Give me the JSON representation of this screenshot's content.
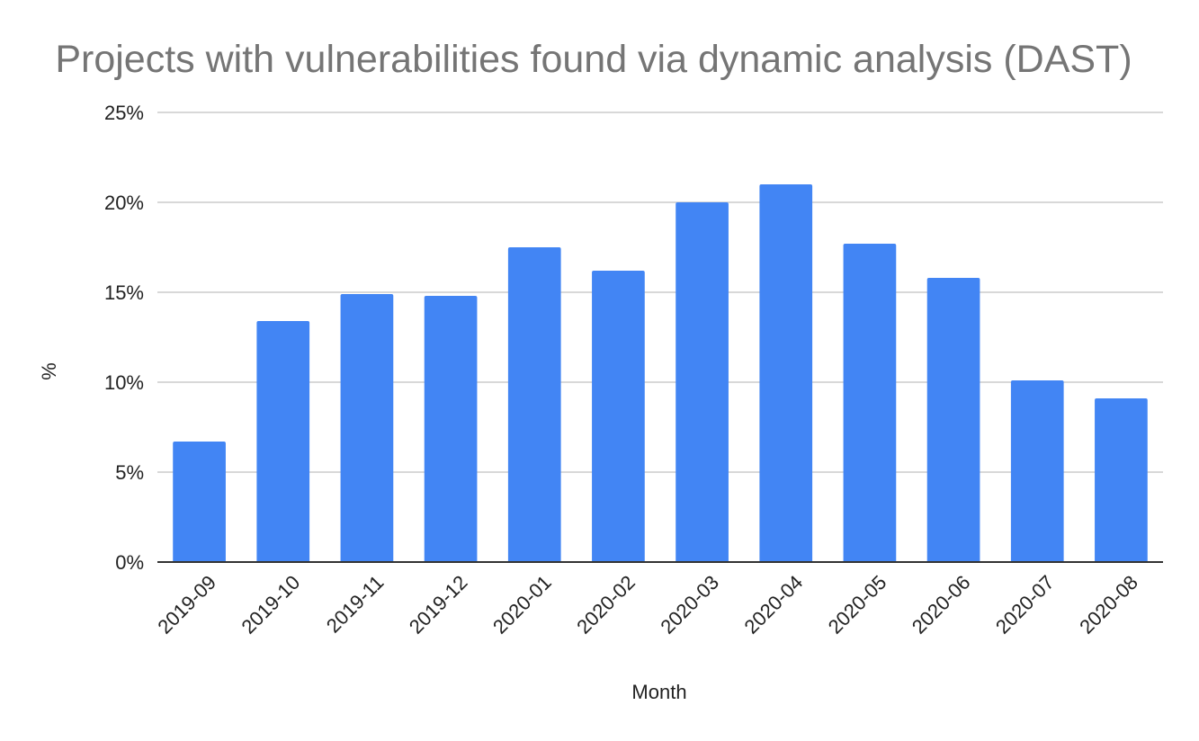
{
  "chart_data": {
    "type": "bar",
    "title": "Projects with vulnerabilities found via dynamic analysis (DAST)",
    "xlabel": "Month",
    "ylabel": "%",
    "categories": [
      "2019-09",
      "2019-10",
      "2019-11",
      "2019-12",
      "2020-01",
      "2020-02",
      "2020-03",
      "2020-04",
      "2020-05",
      "2020-06",
      "2020-07",
      "2020-08"
    ],
    "series": [
      {
        "values": [
          6.7,
          13.4,
          14.9,
          14.8,
          17.5,
          16.2,
          20.0,
          21.0,
          17.7,
          15.8,
          10.1,
          9.1
        ],
        "color": "#4285f4"
      }
    ],
    "ylim": [
      0,
      25
    ],
    "yticks": [
      0,
      5,
      10,
      15,
      20,
      25
    ],
    "ytick_labels": [
      "0%",
      "5%",
      "10%",
      "15%",
      "20%",
      "25%"
    ],
    "grid": true,
    "legend": "none"
  }
}
